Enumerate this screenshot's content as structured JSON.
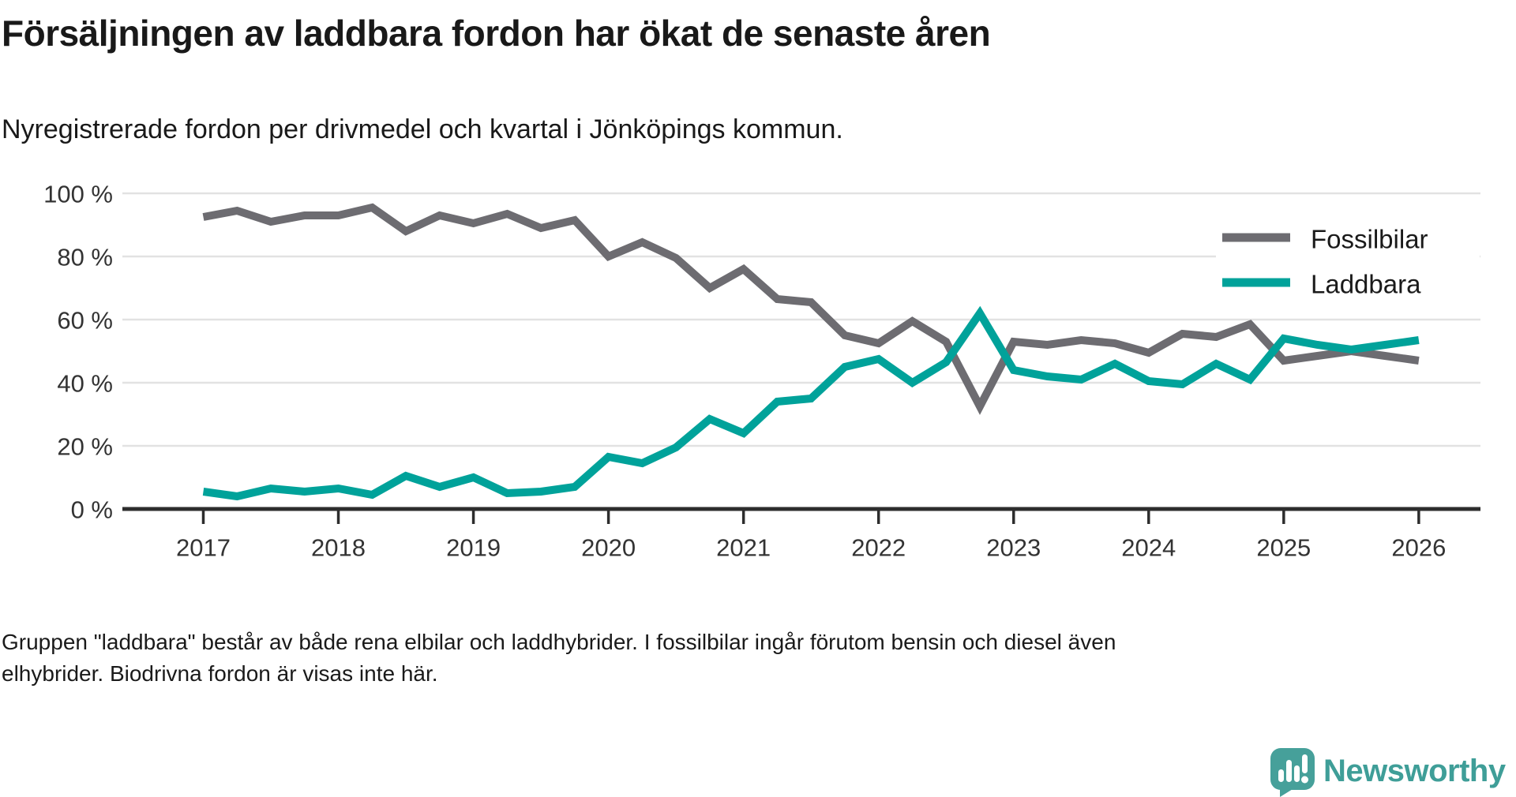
{
  "header": {
    "title": "Försäljningen av laddbara fordon har ökat de senaste åren",
    "subtitle": "Nyregistrerade fordon per drivmedel och kvartal i Jönköpings kommun."
  },
  "chart_data": {
    "type": "line",
    "x_unit": "quarter",
    "x_start": "2017 Q1",
    "x_end": "2026 Q1",
    "x_ticks": [
      "2017",
      "2018",
      "2019",
      "2020",
      "2021",
      "2022",
      "2023",
      "2024",
      "2025",
      "2026"
    ],
    "y_ticks": [
      0,
      20,
      40,
      60,
      80,
      100
    ],
    "y_tick_suffix": " %",
    "ylim": [
      0,
      100
    ],
    "grid": "horizontal",
    "legend_position": "top-right",
    "axis_color": "#2d2d2d",
    "gridline_color": "#e2e2e2",
    "series": [
      {
        "name": "Fossilbilar",
        "color": "#6d6c71",
        "values": [
          92.5,
          94.5,
          91,
          93,
          93,
          95.5,
          88,
          93,
          90.5,
          93.5,
          89,
          91.5,
          80,
          84.5,
          79.5,
          70,
          76,
          66.5,
          65.5,
          55,
          52.5,
          59.5,
          53,
          32.5,
          53,
          52,
          53.5,
          52.5,
          49.5,
          55.5,
          54.5,
          58.5,
          47,
          48.5,
          50,
          48.5,
          47
        ]
      },
      {
        "name": "Laddbara",
        "color": "#00a29a",
        "values": [
          5.5,
          4,
          6.5,
          5.5,
          6.5,
          4.5,
          10.5,
          7,
          10,
          5,
          5.5,
          7,
          16.5,
          14.5,
          19.5,
          28.5,
          24,
          34,
          35,
          45,
          47.5,
          40,
          46.5,
          62,
          44,
          42,
          41,
          46,
          40.5,
          39.5,
          46,
          41,
          54,
          52,
          50.5,
          52,
          53.5
        ]
      }
    ]
  },
  "footer": {
    "lines": [
      "Gruppen \"laddbara\" består av både rena elbilar och laddhybrider. I fossilbilar ingår förutom bensin och diesel även",
      "elhybrider. Biodrivna fordon är visas inte här."
    ]
  },
  "logo": {
    "text": "Newsworthy",
    "color": "#3f9e98",
    "icon_color": "#46a09a"
  }
}
